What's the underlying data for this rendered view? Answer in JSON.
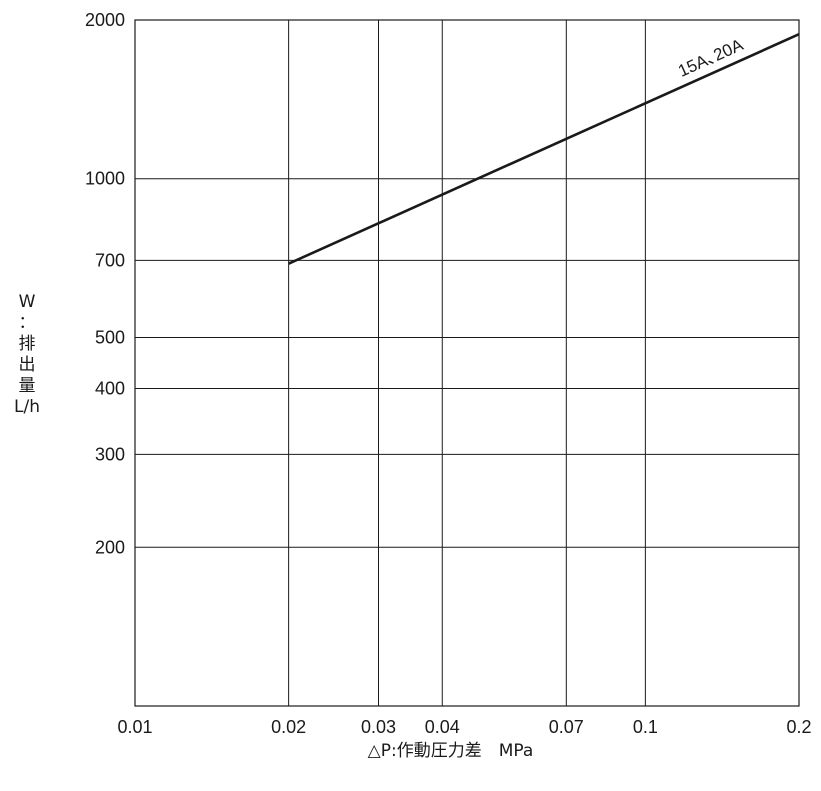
{
  "chart_data": {
    "type": "line",
    "x_scale": "log",
    "y_scale": "log",
    "xlim": [
      0.01,
      0.2
    ],
    "ylim": [
      100,
      2000
    ],
    "x_ticks": [
      0.01,
      0.02,
      0.03,
      0.04,
      0.07,
      0.1,
      0.2
    ],
    "x_tick_labels": [
      "0.01",
      "0.02",
      "0.03",
      "0.04",
      "0.07",
      "0.1",
      "0.2"
    ],
    "y_ticks": [
      200,
      300,
      400,
      500,
      700,
      1000,
      2000
    ],
    "y_tick_labels": [
      "200",
      "300",
      "400",
      "500",
      "700",
      "1000",
      "2000"
    ],
    "grid": true,
    "xlabel": "△P:作動圧力差　MPa",
    "ylabel_lines": [
      "W",
      "：",
      "排",
      "出",
      "量",
      "L/h"
    ],
    "series": [
      {
        "name": "15A､20A",
        "x": [
          0.02,
          0.2
        ],
        "y": [
          690,
          1880
        ],
        "color": "#1a1a1a"
      }
    ]
  }
}
